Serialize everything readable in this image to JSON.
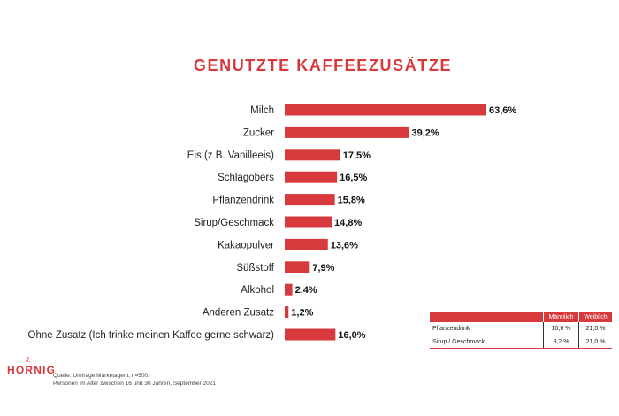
{
  "chart_data": {
    "type": "bar",
    "orientation": "horizontal",
    "title": "GENUTZTE KAFFEEZUSÄTZE",
    "categories": [
      "Milch",
      "Zucker",
      "Eis (z.B. Vanilleeis)",
      "Schlagobers",
      "Pflanzendrink",
      "Sirup/Geschmack",
      "Kakaopulver",
      "Süßstoff",
      "Alkohol",
      "Anderen Zusatz",
      "Ohne Zusatz (Ich trinke meinen Kaffee gerne schwarz)"
    ],
    "values": [
      63.6,
      39.2,
      17.5,
      16.5,
      15.8,
      14.8,
      13.6,
      7.9,
      2.4,
      1.2,
      16.0
    ],
    "value_labels": [
      "63,6%",
      "39,2%",
      "17,5%",
      "16,5%",
      "15,8%",
      "14,8%",
      "13,6%",
      "7,9%",
      "2,4%",
      "1,2%",
      "16,0%"
    ],
    "xlim": [
      0,
      63.6
    ],
    "grid": false,
    "bar_color": "#d7393c"
  },
  "inset_table": {
    "headers": [
      "",
      "Männlich",
      "Weiblich"
    ],
    "rows": [
      {
        "label": "Pflanzendrink",
        "male": "10,6 %",
        "female": "21,0 %"
      },
      {
        "label": "Sirup / Geschmack",
        "male": "9,2 %",
        "female": "21,0 %"
      }
    ]
  },
  "footer": {
    "brand_initial": "J.",
    "brand_name": "HORNIG",
    "source_line1": "Quelle: Umfrage Marketagent, n=500,",
    "source_line2": "Personen im Alter zwischen 16 und 30 Jahren, September 2021"
  },
  "colors": {
    "accent": "#d7393c",
    "text": "#222222"
  }
}
